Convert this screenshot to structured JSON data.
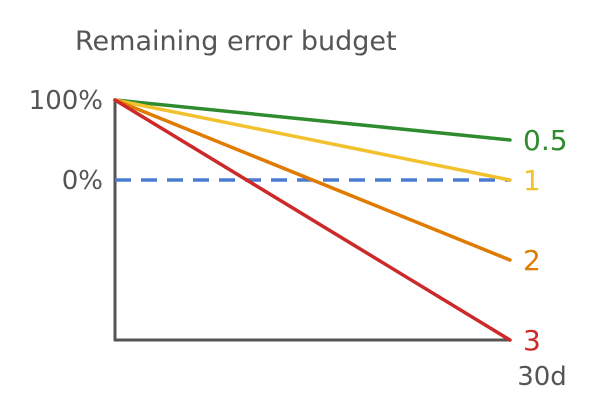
{
  "chart_data": {
    "type": "line",
    "title": "Remaining error budget",
    "xlabel": "",
    "ylabel": "",
    "x_tick_label": "30d",
    "y_tick_labels": [
      {
        "label": "100%",
        "value": 100
      },
      {
        "label": "0%",
        "value": 0
      }
    ],
    "x_range": [
      0,
      30
    ],
    "y_range": [
      -200,
      100
    ],
    "reference_line": {
      "value": 0,
      "style": "dashed",
      "color": "#4a7bd0"
    },
    "grid": false,
    "series": [
      {
        "name": "0.5",
        "x": [
          0,
          30
        ],
        "y": [
          100,
          50
        ],
        "color": "#2e8b2e"
      },
      {
        "name": "1",
        "x": [
          0,
          30
        ],
        "y": [
          100,
          0
        ],
        "color": "#f2c12e"
      },
      {
        "name": "2",
        "x": [
          0,
          30
        ],
        "y": [
          100,
          -100
        ],
        "color": "#e07b00"
      },
      {
        "name": "3",
        "x": [
          0,
          30
        ],
        "y": [
          100,
          -200
        ],
        "color": "#cc2a2a"
      }
    ]
  }
}
